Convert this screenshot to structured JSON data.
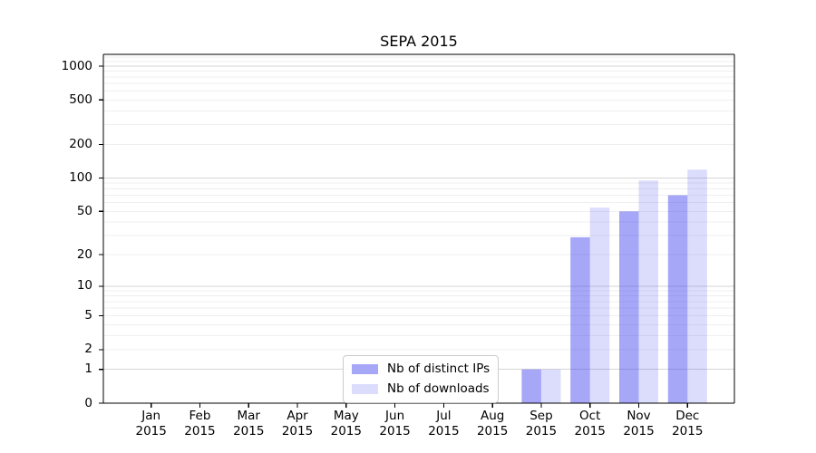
{
  "chart_data": {
    "type": "bar",
    "title": "SEPA 2015",
    "categories": [
      "Jan",
      "Feb",
      "Mar",
      "Apr",
      "May",
      "Jun",
      "Jul",
      "Aug",
      "Sep",
      "Oct",
      "Nov",
      "Dec"
    ],
    "category_year": "2015",
    "series": [
      {
        "name": "Nb of distinct IPs",
        "fill": "rgba(60,60,240,0.45)",
        "hex_on_white": "#a9a9fa",
        "values": [
          0,
          0,
          0,
          0,
          0,
          0,
          0,
          0,
          1,
          29,
          50,
          70
        ]
      },
      {
        "name": "Nb of downloads",
        "fill": "rgba(60,60,240,0.18)",
        "hex_on_white": "#dbdbfa",
        "values": [
          0,
          0,
          0,
          0,
          0,
          0,
          0,
          0,
          1,
          54,
          95,
          119
        ]
      }
    ],
    "xlabel": "",
    "ylabel": "",
    "yscale": "log1p (symlog-like, linear 0-1 then log decades)",
    "yticks": [
      1000,
      500,
      200,
      100,
      50,
      20,
      10,
      5,
      2,
      1,
      0
    ],
    "ylim": [
      0,
      1250
    ],
    "grid": {
      "horizontal": true,
      "minor_log_gridlines": true,
      "major_color": "#d6d6d6",
      "minor_color": "#efefef"
    },
    "legend_position": "inside bottom-center",
    "spine_color": "#000000",
    "background": "#ffffff"
  }
}
